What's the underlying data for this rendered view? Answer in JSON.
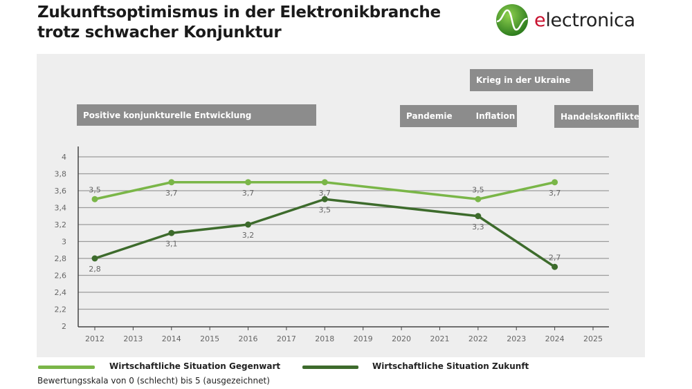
{
  "header": {
    "title_line1": "Zukunftsoptimismus in der Elektronikbranche",
    "title_line2": "trotz schwacher Konjunktur",
    "logo_text": "electronica"
  },
  "annotations": [
    {
      "label": "Positive konjunkturelle Entwicklung"
    },
    {
      "label": "Krieg in der Ukraine"
    },
    {
      "label": "Pandemie"
    },
    {
      "label": "Inflation"
    },
    {
      "label": "Handelskonflikte"
    }
  ],
  "chart_data": {
    "type": "line",
    "x_ticks": [
      2012,
      2013,
      2014,
      2015,
      2016,
      2017,
      2018,
      2019,
      2020,
      2021,
      2022,
      2023,
      2024,
      2025
    ],
    "y_ticks": [
      "2",
      "2,2",
      "2,4",
      "2,6",
      "2,8",
      "3",
      "3,2",
      "3,4",
      "3,6",
      "3,8",
      "4"
    ],
    "ylim": [
      2,
      4
    ],
    "xlim": [
      2012,
      2025
    ],
    "grid": true,
    "legend_placement": "bottom",
    "series": [
      {
        "name": "Wirtschaftliche Situation Gegenwart",
        "color": "#7ab648",
        "x": [
          2012,
          2014,
          2016,
          2018,
          2022,
          2024
        ],
        "values": [
          3.5,
          3.7,
          3.7,
          3.7,
          3.5,
          3.7
        ],
        "labels": [
          "3,5",
          "3,7",
          "3,7",
          "3,7",
          "3,5",
          "3,7"
        ]
      },
      {
        "name": "Wirtschaftliche Situation Zukunft",
        "color": "#3d6b2c",
        "x": [
          2012,
          2014,
          2016,
          2018,
          2022,
          2024
        ],
        "values": [
          2.8,
          3.1,
          3.2,
          3.5,
          3.3,
          2.7
        ],
        "labels": [
          "2,8",
          "3,1",
          "3,2",
          "3,5",
          "3,3",
          "2,7"
        ]
      }
    ],
    "note": "Bewertungsskala von 0 (schlecht) bis 5 (ausgezeichnet)"
  }
}
